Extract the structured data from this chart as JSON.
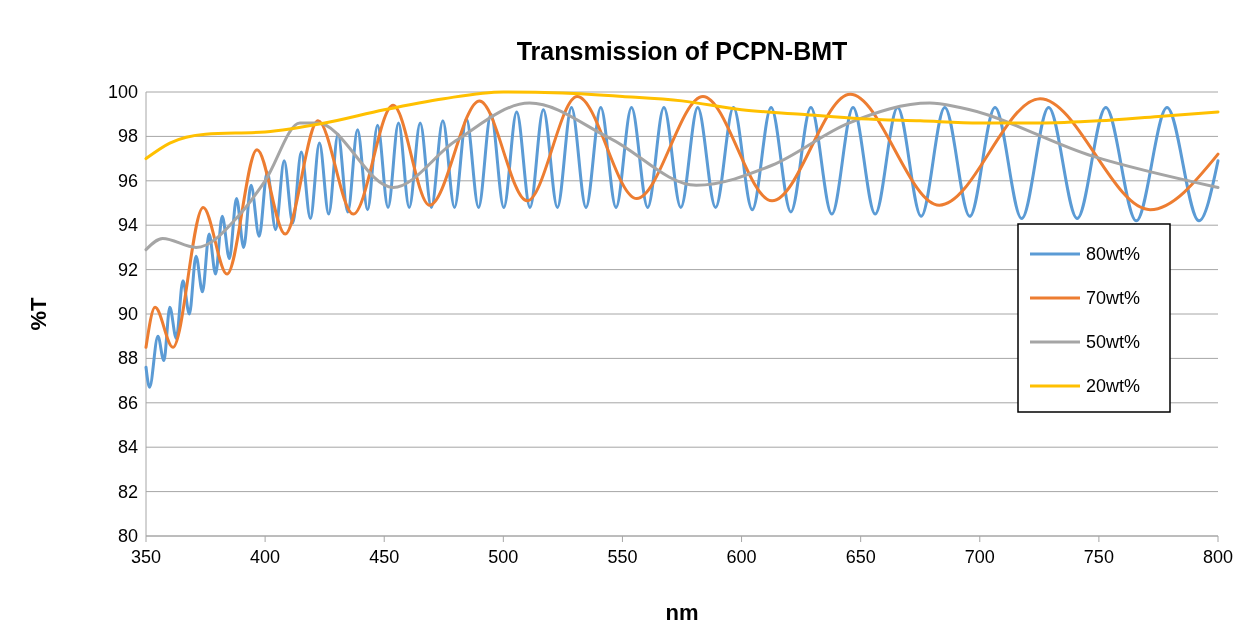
{
  "chart_data": {
    "type": "line",
    "title": "Transmission of PCPN-BMT",
    "xlabel": "nm",
    "ylabel": "%T",
    "xlim": [
      350,
      800
    ],
    "xticks": [
      350,
      400,
      450,
      500,
      550,
      600,
      650,
      700,
      750,
      800
    ],
    "ylim": [
      80,
      100
    ],
    "yticks": [
      80,
      82,
      84,
      86,
      88,
      90,
      92,
      94,
      96,
      98,
      100
    ],
    "grid": "y",
    "legend": "right",
    "marker": "none",
    "line_style": "solid",
    "series": [
      {
        "name": "80wt%",
        "color": "#5b9bd5",
        "x": [
          350,
          351.5,
          355,
          357.5,
          360,
          362.7,
          365.5,
          368.2,
          371,
          373.7,
          376.5,
          379.2,
          382,
          385,
          388,
          391,
          394.1,
          397.5,
          400.9,
          404.4,
          408,
          411.6,
          415.2,
          419,
          422.8,
          426.7,
          430.6,
          434.7,
          438.8,
          443,
          447.2,
          451.6,
          456,
          460.5,
          465.1,
          469.8,
          474.6,
          479.5,
          484.5,
          489.6,
          494.8,
          500.2,
          505.6,
          511.2,
          516.8,
          522.7,
          528.6,
          534.7,
          540.9,
          547.3,
          553.8,
          560.6,
          567.4,
          574.5,
          581.6,
          589.1,
          596.6,
          604.5,
          612.4,
          620.7,
          629.1,
          637.9,
          646.8,
          656.1,
          665.5,
          675.4,
          685.3,
          695.8,
          706.4,
          717.6,
          728.9,
          740.9,
          752.9,
          765.7,
          778.6,
          792,
          800
        ],
        "values": [
          87.6,
          86.7,
          89.0,
          87.9,
          90.3,
          88.9,
          91.5,
          90.0,
          92.6,
          91.0,
          93.6,
          91.8,
          94.4,
          92.5,
          95.2,
          93.0,
          95.8,
          93.5,
          96.4,
          93.8,
          96.9,
          94.1,
          97.3,
          94.3,
          97.7,
          94.5,
          98.1,
          94.6,
          98.3,
          94.7,
          98.5,
          94.8,
          98.6,
          94.8,
          98.6,
          94.8,
          98.7,
          94.8,
          98.8,
          94.8,
          99.0,
          94.8,
          99.1,
          94.8,
          99.2,
          94.8,
          99.3,
          94.8,
          99.3,
          94.8,
          99.3,
          94.8,
          99.3,
          94.8,
          99.3,
          94.8,
          99.3,
          94.7,
          99.3,
          94.6,
          99.3,
          94.5,
          99.3,
          94.5,
          99.3,
          94.4,
          99.3,
          94.4,
          99.3,
          94.3,
          99.3,
          94.3,
          99.3,
          94.2,
          99.3,
          94.2,
          96.9
        ]
      },
      {
        "name": "70wt%",
        "color": "#ed7d31",
        "x": [
          350,
          353.8,
          361.3,
          374,
          384,
          396.6,
          408.4,
          422.2,
          437,
          453.7,
          469,
          490,
          510,
          531,
          556,
          583.8,
          612.8,
          645.6,
          683,
          725.3,
          771.5,
          800
        ],
        "values": [
          88.5,
          90.3,
          88.5,
          94.8,
          91.8,
          97.4,
          93.6,
          98.7,
          94.5,
          99.4,
          94.9,
          99.6,
          95.1,
          99.8,
          95.2,
          99.8,
          95.1,
          99.9,
          94.9,
          99.7,
          94.7,
          97.2
        ]
      },
      {
        "name": "50wt%",
        "color": "#a5a5a5",
        "x": [
          350,
          357,
          371,
          389.5,
          400,
          414.6,
          422,
          453.7,
          480,
          511,
          545,
          581,
          612.8,
          645,
          679,
          691.7,
          747.6,
          800
        ],
        "values": [
          92.9,
          93.4,
          93.0,
          94.5,
          96.0,
          98.6,
          98.6,
          95.7,
          97.8,
          99.5,
          97.9,
          95.8,
          96.7,
          98.6,
          99.5,
          99.3,
          97.1,
          95.7
        ]
      },
      {
        "name": "20wt%",
        "color": "#ffc000",
        "x": [
          350,
          360,
          375,
          400,
          425,
          450,
          475,
          500,
          525,
          550,
          575,
          600,
          625,
          650,
          675,
          700,
          725,
          750,
          775,
          800
        ],
        "values": [
          97.0,
          97.7,
          98.1,
          98.2,
          98.6,
          99.2,
          99.7,
          100.0,
          99.95,
          99.8,
          99.6,
          99.2,
          99.0,
          98.8,
          98.7,
          98.6,
          98.6,
          98.7,
          98.9,
          99.1
        ]
      }
    ]
  }
}
